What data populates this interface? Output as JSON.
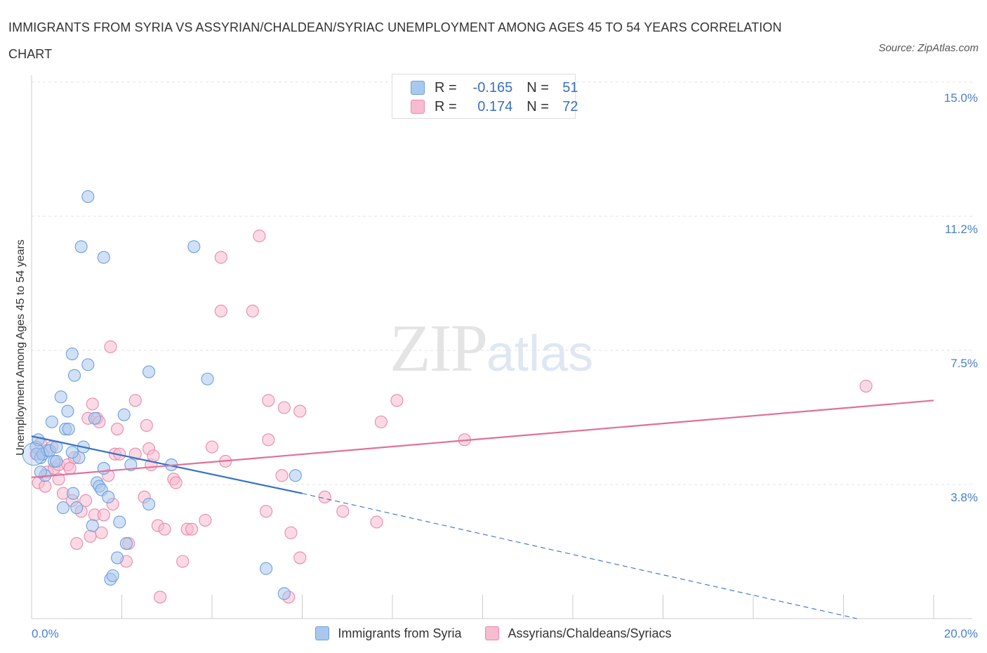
{
  "title": "IMMIGRANTS FROM SYRIA VS ASSYRIAN/CHALDEAN/SYRIAC UNEMPLOYMENT AMONG AGES 45 TO 54 YEARS CORRELATION CHART",
  "source": "Source: ZipAtlas.com",
  "watermark": {
    "zip": "ZIP",
    "atlas": "atlas"
  },
  "legend_top": {
    "rows": [
      {
        "r_label": "R =",
        "r_value": "-0.165",
        "n_label": "N =",
        "n_value": "51"
      },
      {
        "r_label": "R =",
        "r_value": "0.174",
        "n_label": "N =",
        "n_value": "72"
      }
    ]
  },
  "colors": {
    "blue_fill": "#a9c8ef",
    "blue_stroke": "#6f9fdb",
    "blue_line": "#3672c6",
    "pink_fill": "#f7bcd0",
    "pink_stroke": "#e88aaa",
    "pink_line": "#e0709a",
    "grid": "#e3e3e3",
    "axis": "#cccccc"
  },
  "chart_data": {
    "type": "scatter",
    "title": "IMMIGRANTS FROM SYRIA VS ASSYRIAN/CHALDEAN/SYRIAC UNEMPLOYMENT AMONG AGES 45 TO 54 YEARS CORRELATION CHART",
    "xlabel": "",
    "ylabel": "Unemployment Among Ages 45 to 54 years",
    "xlim": [
      0,
      20
    ],
    "ylim": [
      0,
      15
    ],
    "x_tick_labels": [
      "0.0%",
      "20.0%"
    ],
    "y_ticks": [
      3.75,
      7.5,
      11.25,
      15.0
    ],
    "y_tick_labels": [
      "3.8%",
      "7.5%",
      "11.2%",
      "15.0%"
    ],
    "grid": true,
    "legend_position": "top-center",
    "series": [
      {
        "name": "Immigrants from Syria",
        "color": "#a9c8ef",
        "R": -0.165,
        "N": 51,
        "trend": {
          "x_start": 0.0,
          "y_start": 5.1,
          "x_solid_end": 6.0,
          "y_solid_end": 3.5,
          "x_dash_end": 18.3,
          "y_dash_end": 0.0
        },
        "points": [
          [
            0.1,
            4.8
          ],
          [
            0.12,
            4.6
          ],
          [
            0.15,
            5.0
          ],
          [
            0.2,
            4.5
          ],
          [
            0.25,
            4.6
          ],
          [
            0.3,
            4.0
          ],
          [
            0.35,
            4.7
          ],
          [
            0.4,
            4.7
          ],
          [
            0.45,
            5.5
          ],
          [
            0.5,
            4.4
          ],
          [
            0.55,
            4.8
          ],
          [
            0.65,
            6.2
          ],
          [
            0.7,
            3.1
          ],
          [
            0.75,
            5.3
          ],
          [
            0.8,
            5.8
          ],
          [
            0.82,
            5.3
          ],
          [
            0.9,
            7.4
          ],
          [
            0.92,
            3.5
          ],
          [
            0.95,
            6.8
          ],
          [
            1.0,
            3.1
          ],
          [
            1.05,
            4.5
          ],
          [
            1.1,
            10.4
          ],
          [
            1.15,
            4.8
          ],
          [
            1.25,
            11.8
          ],
          [
            1.25,
            7.1
          ],
          [
            1.35,
            2.6
          ],
          [
            1.4,
            5.6
          ],
          [
            1.45,
            3.8
          ],
          [
            1.5,
            3.7
          ],
          [
            1.55,
            3.6
          ],
          [
            1.6,
            4.2
          ],
          [
            1.6,
            10.1
          ],
          [
            1.7,
            3.4
          ],
          [
            1.75,
            1.1
          ],
          [
            1.8,
            1.2
          ],
          [
            1.9,
            1.7
          ],
          [
            1.95,
            2.7
          ],
          [
            2.05,
            5.7
          ],
          [
            2.1,
            2.1
          ],
          [
            2.2,
            4.3
          ],
          [
            2.6,
            3.2
          ],
          [
            2.6,
            6.9
          ],
          [
            3.1,
            4.3
          ],
          [
            3.6,
            10.4
          ],
          [
            3.9,
            6.7
          ],
          [
            5.2,
            1.4
          ],
          [
            5.6,
            0.7
          ],
          [
            5.85,
            4.0
          ],
          [
            0.2,
            4.1
          ],
          [
            0.55,
            4.4
          ],
          [
            0.9,
            4.65
          ]
        ]
      },
      {
        "name": "Assyrians/Chaldeans/Syriacs",
        "color": "#f7bcd0",
        "R": 0.174,
        "N": 72,
        "trend": {
          "x_start": 0.0,
          "y_start": 3.95,
          "x_end": 20.0,
          "y_end": 6.1
        },
        "points": [
          [
            0.1,
            4.6
          ],
          [
            0.15,
            3.8
          ],
          [
            0.2,
            4.9
          ],
          [
            0.25,
            4.6
          ],
          [
            0.3,
            3.7
          ],
          [
            0.35,
            4.1
          ],
          [
            0.45,
            4.8
          ],
          [
            0.5,
            4.2
          ],
          [
            0.6,
            4.3
          ],
          [
            0.7,
            3.5
          ],
          [
            0.8,
            4.3
          ],
          [
            0.85,
            4.2
          ],
          [
            0.9,
            3.3
          ],
          [
            0.95,
            4.5
          ],
          [
            1.0,
            2.1
          ],
          [
            1.1,
            3.0
          ],
          [
            1.2,
            3.3
          ],
          [
            1.25,
            5.6
          ],
          [
            1.3,
            2.3
          ],
          [
            1.35,
            6.0
          ],
          [
            1.4,
            2.9
          ],
          [
            1.45,
            5.6
          ],
          [
            1.5,
            5.5
          ],
          [
            1.55,
            2.4
          ],
          [
            1.6,
            2.9
          ],
          [
            1.7,
            4.0
          ],
          [
            1.75,
            7.6
          ],
          [
            1.8,
            3.2
          ],
          [
            1.85,
            4.6
          ],
          [
            1.9,
            5.3
          ],
          [
            1.95,
            4.6
          ],
          [
            2.1,
            1.6
          ],
          [
            2.15,
            2.1
          ],
          [
            2.3,
            4.6
          ],
          [
            2.3,
            6.1
          ],
          [
            2.5,
            3.4
          ],
          [
            2.55,
            5.4
          ],
          [
            2.6,
            4.75
          ],
          [
            2.65,
            4.3
          ],
          [
            2.7,
            4.55
          ],
          [
            2.8,
            2.6
          ],
          [
            2.85,
            0.6
          ],
          [
            2.95,
            2.5
          ],
          [
            3.15,
            3.9
          ],
          [
            3.2,
            3.8
          ],
          [
            3.35,
            1.6
          ],
          [
            3.45,
            2.5
          ],
          [
            3.55,
            2.5
          ],
          [
            3.85,
            2.75
          ],
          [
            4.0,
            4.8
          ],
          [
            4.2,
            8.6
          ],
          [
            4.2,
            10.1
          ],
          [
            4.3,
            4.4
          ],
          [
            4.9,
            8.6
          ],
          [
            5.05,
            10.7
          ],
          [
            5.2,
            3.0
          ],
          [
            5.25,
            6.1
          ],
          [
            5.25,
            5.0
          ],
          [
            5.55,
            4.0
          ],
          [
            5.6,
            5.9
          ],
          [
            5.7,
            0.6
          ],
          [
            5.75,
            2.4
          ],
          [
            5.95,
            1.7
          ],
          [
            5.95,
            5.8
          ],
          [
            6.5,
            3.4
          ],
          [
            6.9,
            3.0
          ],
          [
            7.65,
            2.7
          ],
          [
            7.75,
            5.5
          ],
          [
            8.1,
            6.1
          ],
          [
            9.6,
            5.0
          ],
          [
            18.5,
            6.5
          ],
          [
            0.6,
            3.9
          ]
        ]
      }
    ]
  }
}
